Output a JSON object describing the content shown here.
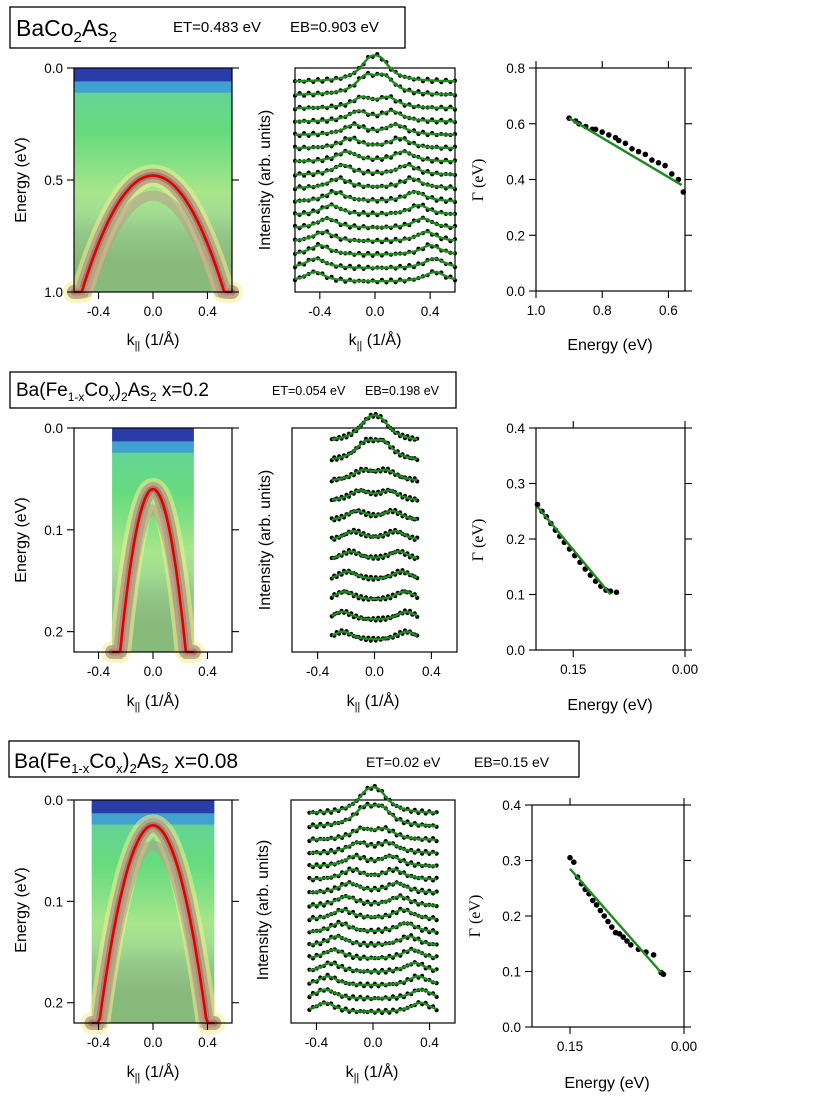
{
  "colors": {
    "band_fit": "#e00000",
    "lorentz_fit": "#1f8a1f",
    "data_points": "#000000",
    "cmap": [
      "#2a3ca8",
      "#3a9ad8",
      "#35c2a0",
      "#38d068",
      "#8fe07a",
      "#f4f08c",
      "#e8d9a0",
      "#b89c86",
      "#9a7262",
      "#ffffff"
    ]
  },
  "chart_data": [
    {
      "id": "cobalt",
      "title_parts": {
        "base": "BaCo",
        "sub": "2",
        "tail": "As",
        "sub2": "2"
      },
      "params": {
        "et": "ET=0.483 eV",
        "eb": "EB=0.903 eV"
      },
      "intensity_map": {
        "type": "heatmap",
        "xlabel": "k",
        "xlabel_sub": "||",
        "xlabel_tail": " (1/Å)",
        "ylabel": "Energy (eV)",
        "xlim": [
          -0.58,
          0.58
        ],
        "ylim": [
          0,
          1.0
        ],
        "xticks": [
          "-0.4",
          "0.0",
          "0.4"
        ],
        "xtick_values": [
          -0.4,
          0.0,
          0.4
        ],
        "yticks": [
          "0.0",
          "0.5",
          "1.0"
        ],
        "ytick_values": [
          0.0,
          0.5,
          1.0
        ],
        "data_kmax": 0.58,
        "band": {
          "top": 0.48,
          "curvature": 1.9
        }
      },
      "mdc": {
        "type": "line",
        "xlabel": "k",
        "xlabel_sub": "||",
        "xlabel_tail": " (1/Å)",
        "ylabel": "Intensity (arb. units)",
        "xlim": [
          -0.58,
          0.58
        ],
        "xticks": [
          "-0.4",
          "0.0",
          "0.4"
        ],
        "xtick_values": [
          -0.4,
          0.0,
          0.4
        ],
        "curves": 16,
        "data_kmax": 0.58
      },
      "gamma": {
        "type": "scatter",
        "xlabel": "Energy (eV)",
        "ylabel": "Γ (eV)",
        "xlim": [
          1.0,
          0.55
        ],
        "ylim": [
          0,
          0.8
        ],
        "xticks": [
          "1.0",
          "0.8",
          "0.6"
        ],
        "xtick_values": [
          1.0,
          0.8,
          0.6
        ],
        "yticks": [
          "0.0",
          "0.2",
          "0.4",
          "0.6",
          "0.8"
        ],
        "ytick_values": [
          0,
          0.2,
          0.4,
          0.6,
          0.8
        ],
        "points": [
          [
            0.9,
            0.62
          ],
          [
            0.88,
            0.61
          ],
          [
            0.87,
            0.6
          ],
          [
            0.85,
            0.59
          ],
          [
            0.83,
            0.58
          ],
          [
            0.82,
            0.58
          ],
          [
            0.8,
            0.57
          ],
          [
            0.78,
            0.56
          ],
          [
            0.76,
            0.55
          ],
          [
            0.75,
            0.54
          ],
          [
            0.73,
            0.53
          ],
          [
            0.71,
            0.51
          ],
          [
            0.69,
            0.5
          ],
          [
            0.67,
            0.49
          ],
          [
            0.65,
            0.47
          ],
          [
            0.63,
            0.46
          ],
          [
            0.61,
            0.45
          ],
          [
            0.59,
            0.42
          ],
          [
            0.57,
            0.4
          ],
          [
            0.555,
            0.355
          ]
        ],
        "fit": [
          [
            0.9,
            0.62
          ],
          [
            0.56,
            0.38
          ]
        ]
      }
    },
    {
      "id": "x02",
      "title_parts": {
        "base": "Ba(Fe",
        "sub": "1-x",
        "mid": "Co",
        "sub2": "x",
        "tail": ")",
        "sub3": "2",
        "tail2": "As",
        "sub4": "2",
        "suffix": " x=0.2"
      },
      "params": {
        "et": "ET=0.054 eV",
        "eb": "EB=0.198 eV"
      },
      "intensity_map": {
        "type": "heatmap",
        "xlabel": "k",
        "xlabel_sub": "||",
        "xlabel_tail": " (1/Å)",
        "ylabel": "Energy (eV)",
        "xlim": [
          -0.58,
          0.58
        ],
        "ylim": [
          0,
          0.22
        ],
        "xticks": [
          "-0.4",
          "0.0",
          "0.4"
        ],
        "xtick_values": [
          -0.4,
          0.0,
          0.4
        ],
        "yticks": [
          "0.0",
          "0.1",
          "0.2"
        ],
        "ytick_values": [
          0.0,
          0.1,
          0.2
        ],
        "data_kmax": 0.3,
        "band": {
          "top": 0.06,
          "curvature": 2.75
        }
      },
      "mdc": {
        "type": "line",
        "xlabel": "k",
        "xlabel_sub": "||",
        "xlabel_tail": " (1/Å)",
        "ylabel": "Intensity (arb. units)",
        "xlim": [
          -0.58,
          0.58
        ],
        "xticks": [
          "-0.4",
          "0.0",
          "0.4"
        ],
        "xtick_values": [
          -0.4,
          0.0,
          0.4
        ],
        "curves": 11,
        "data_kmax": 0.3
      },
      "gamma": {
        "type": "scatter",
        "xlabel": "Energy (eV)",
        "ylabel": "Γ (eV)",
        "xlim": [
          0.2,
          0.0
        ],
        "ylim": [
          0,
          0.4
        ],
        "xticks": [
          "0.15",
          "0.00"
        ],
        "xtick_values": [
          0.15,
          0.0
        ],
        "yticks": [
          "0.0",
          "0.1",
          "0.2",
          "0.3",
          "0.4"
        ],
        "ytick_values": [
          0,
          0.1,
          0.2,
          0.3,
          0.4
        ],
        "points": [
          [
            0.198,
            0.262
          ],
          [
            0.192,
            0.25
          ],
          [
            0.186,
            0.24
          ],
          [
            0.18,
            0.228
          ],
          [
            0.174,
            0.216
          ],
          [
            0.168,
            0.205
          ],
          [
            0.162,
            0.194
          ],
          [
            0.155,
            0.182
          ],
          [
            0.148,
            0.17
          ],
          [
            0.141,
            0.158
          ],
          [
            0.134,
            0.146
          ],
          [
            0.127,
            0.135
          ],
          [
            0.12,
            0.124
          ],
          [
            0.113,
            0.115
          ],
          [
            0.106,
            0.108
          ],
          [
            0.1,
            0.106
          ],
          [
            0.092,
            0.104
          ]
        ],
        "fit": [
          [
            0.198,
            0.258
          ],
          [
            0.1,
            0.1
          ]
        ]
      }
    },
    {
      "id": "x008",
      "title_parts": {
        "base": "Ba(Fe",
        "sub": "1-x",
        "mid": "Co",
        "sub2": "x",
        "tail": ")",
        "sub3": "2",
        "tail2": "As",
        "sub4": "2",
        "suffix": " x=0.08"
      },
      "params": {
        "et": "ET=0.02 eV",
        "eb": "EB=0.15 eV"
      },
      "intensity_map": {
        "type": "heatmap",
        "xlabel": "k",
        "xlabel_sub": "||",
        "xlabel_tail": " (1/Å)",
        "ylabel": "Energy (eV)",
        "xlim": [
          -0.58,
          0.58
        ],
        "ylim": [
          0,
          0.22
        ],
        "xticks": [
          "-0.4",
          "0.0",
          "0.4"
        ],
        "xtick_values": [
          -0.4,
          0.0,
          0.4
        ],
        "yticks": [
          "0.0",
          "0.1",
          "0.2"
        ],
        "ytick_values": [
          0.0,
          0.1,
          0.2
        ],
        "data_kmax": 0.45,
        "band": {
          "top": 0.025,
          "curvature": 1.25
        }
      },
      "mdc": {
        "type": "line",
        "xlabel": "k",
        "xlabel_sub": "||",
        "xlabel_tail": " (1/Å)",
        "ylabel": "Intensity (arb. units)",
        "xlim": [
          -0.58,
          0.58
        ],
        "xticks": [
          "-0.4",
          "0.0",
          "0.4"
        ],
        "xtick_values": [
          -0.4,
          0.0,
          0.4
        ],
        "curves": 16,
        "data_kmax": 0.45
      },
      "gamma": {
        "type": "scatter",
        "xlabel": "Energy (eV)",
        "ylabel": "Γ (eV)",
        "xlim": [
          0.2,
          0.0
        ],
        "ylim": [
          0,
          0.4
        ],
        "xticks": [
          "0.15",
          "0.00"
        ],
        "xtick_values": [
          0.15,
          0.0
        ],
        "yticks": [
          "0.0",
          "0.1",
          "0.2",
          "0.3",
          "0.4"
        ],
        "ytick_values": [
          0,
          0.1,
          0.2,
          0.3,
          0.4
        ],
        "points": [
          [
            0.15,
            0.305
          ],
          [
            0.145,
            0.297
          ],
          [
            0.14,
            0.27
          ],
          [
            0.135,
            0.258
          ],
          [
            0.13,
            0.248
          ],
          [
            0.125,
            0.24
          ],
          [
            0.12,
            0.228
          ],
          [
            0.115,
            0.22
          ],
          [
            0.11,
            0.21
          ],
          [
            0.105,
            0.2
          ],
          [
            0.1,
            0.19
          ],
          [
            0.095,
            0.18
          ],
          [
            0.09,
            0.17
          ],
          [
            0.085,
            0.168
          ],
          [
            0.08,
            0.162
          ],
          [
            0.075,
            0.155
          ],
          [
            0.07,
            0.148
          ],
          [
            0.06,
            0.14
          ],
          [
            0.05,
            0.135
          ],
          [
            0.04,
            0.13
          ],
          [
            0.03,
            0.098
          ],
          [
            0.027,
            0.095
          ]
        ],
        "fit": [
          [
            0.15,
            0.285
          ],
          [
            0.03,
            0.098
          ]
        ]
      }
    }
  ]
}
